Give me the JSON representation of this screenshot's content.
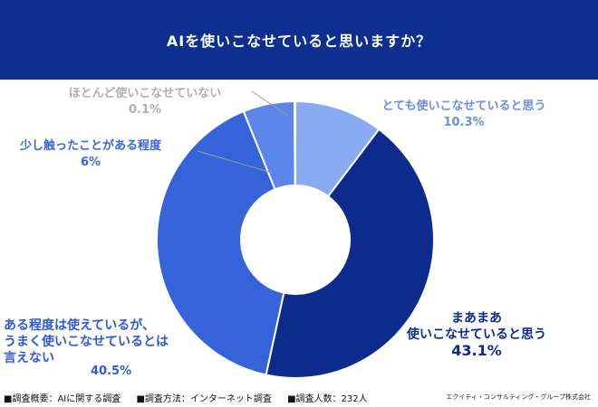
{
  "header": {
    "title": "AIを使いこなせていると思いますか？"
  },
  "colors": {
    "header_bg": "#0d2f8f"
  },
  "chart_data": {
    "type": "pie",
    "subtype": "donut",
    "title": "AIを使いこなせていると思いますか？",
    "slices": [
      {
        "label_lines": [
          "とても使いこなせていると思う"
        ],
        "value": 10.3,
        "value_label": "10.3%",
        "color": "#8aabf1",
        "label_color": "#6a8fe0"
      },
      {
        "label_lines": [
          "まあまあ",
          "使いこなせていると思う"
        ],
        "value": 43.1,
        "value_label": "43.1%",
        "color": "#0d2b8c",
        "label_color": "#0d2b8c"
      },
      {
        "label_lines": [
          "ある程度は使えているが、",
          "うまく使いこなせているとは",
          "言えない"
        ],
        "value": 40.5,
        "value_label": "40.5%",
        "color": "#3563d9",
        "label_color": "#2e5ad4"
      },
      {
        "label_lines": [
          "少し触ったことがある程度"
        ],
        "value": 6,
        "value_label": "6%",
        "color": "#5b87ea",
        "label_color": "#3a66d8"
      },
      {
        "label_lines": [
          "ほとんど使いこなせていない"
        ],
        "value": 0.1,
        "value_label": "0.1%",
        "color": "#b4b4b4",
        "label_color": "#b0b0b0"
      }
    ]
  },
  "footer": {
    "items": [
      "■調査概要：AIに関する調査",
      "■調査方法：インターネット調査",
      "■調査人数：232人"
    ],
    "company": "エクイティ・コンサルティング・グループ株式会社"
  }
}
